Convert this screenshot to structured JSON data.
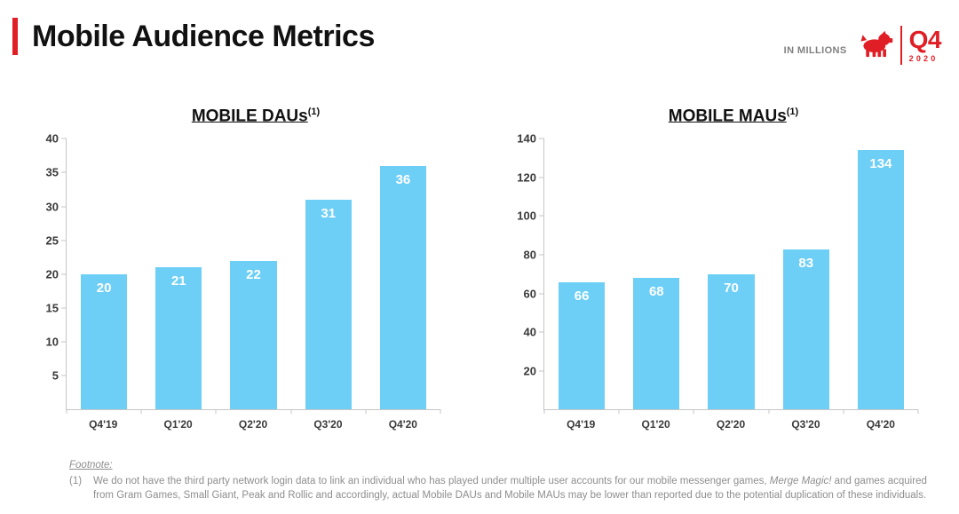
{
  "header": {
    "title": "Mobile Audience Metrics",
    "units_label": "IN MILLIONS",
    "quarter": "Q4",
    "year": "2020"
  },
  "colors": {
    "accent_red": "#E01E25",
    "bar_blue": "#6ECFF6",
    "axis_gray": "#C6C6C6",
    "footnote_gray": "#8E8E8E"
  },
  "icons": {
    "logo": "zynga-dog-icon"
  },
  "chart_data": [
    {
      "type": "bar",
      "title": "MOBILE DAUs",
      "footnote_ref": "(1)",
      "categories": [
        "Q4'19",
        "Q1'20",
        "Q2'20",
        "Q3'20",
        "Q4'20"
      ],
      "values": [
        20,
        21,
        22,
        31,
        36
      ],
      "ylim": [
        0,
        40
      ],
      "ytick_step": 5,
      "xlabel": "",
      "ylabel": "",
      "grid": false,
      "legend": "none",
      "bar_color": "#6ECFF6",
      "value_label_color": "#FFFFFF"
    },
    {
      "type": "bar",
      "title": "MOBILE MAUs",
      "footnote_ref": "(1)",
      "categories": [
        "Q4'19",
        "Q1'20",
        "Q2'20",
        "Q3'20",
        "Q4'20"
      ],
      "values": [
        66,
        68,
        70,
        83,
        134
      ],
      "ylim": [
        0,
        140
      ],
      "ytick_step": 20,
      "xlabel": "",
      "ylabel": "",
      "grid": false,
      "legend": "none",
      "bar_color": "#6ECFF6",
      "value_label_color": "#FFFFFF"
    }
  ],
  "footnote": {
    "label": "Footnote:",
    "marker": "(1)",
    "text_before": "We do not have the third party network login data to link an individual who has played under multiple user accounts for our mobile messenger games, ",
    "italic_text": "Merge Magic!",
    "text_after": " and games acquired from Gram Games, Small Giant, Peak and Rollic and accordingly, actual Mobile DAUs and Mobile MAUs may be lower than reported due to the potential duplication of these individuals."
  }
}
